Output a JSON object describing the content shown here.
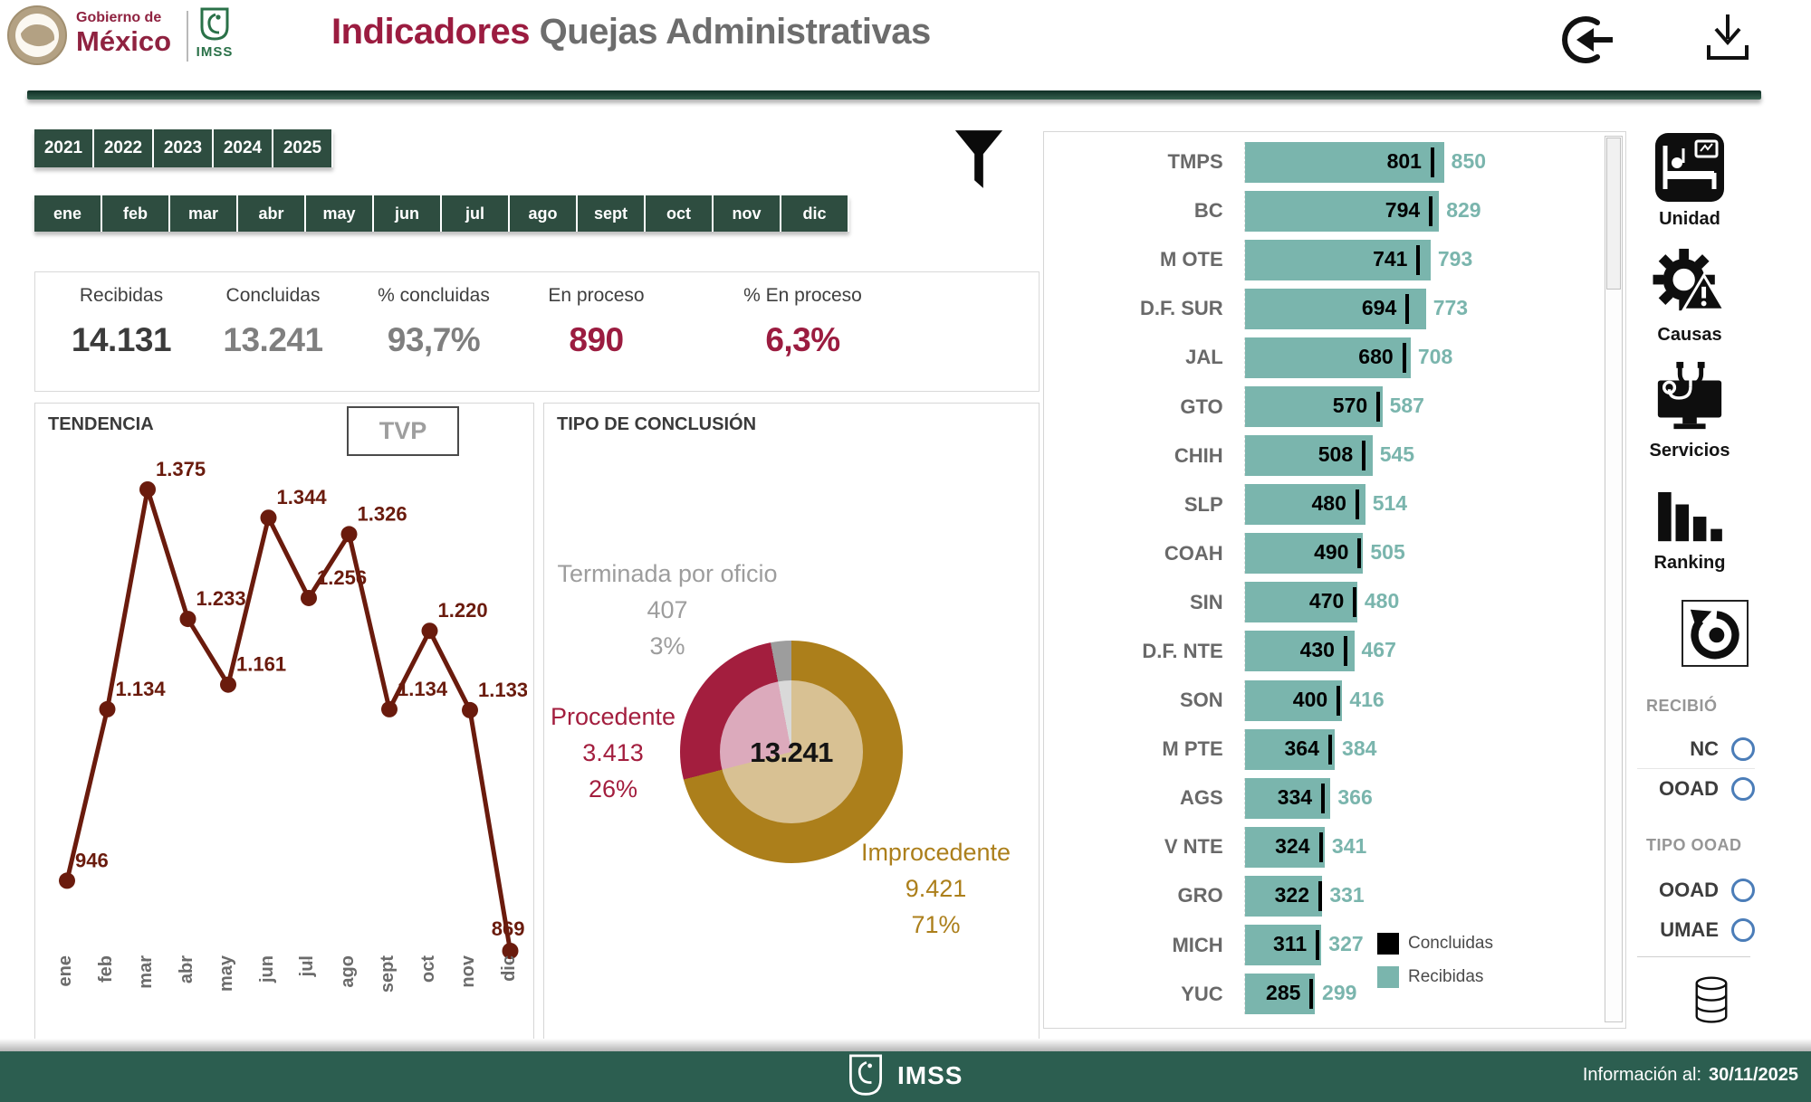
{
  "header": {
    "logo": {
      "gobierno_line1": "Gobierno de",
      "gobierno_line2": "México",
      "imss": "IMSS"
    },
    "title_primary": "Indicadores",
    "title_secondary": " Quejas Administrativas"
  },
  "filters": {
    "years": [
      "2021",
      "2022",
      "2023",
      "2024",
      "2025"
    ],
    "months": [
      "ene",
      "feb",
      "mar",
      "abr",
      "may",
      "jun",
      "jul",
      "ago",
      "sept",
      "oct",
      "nov",
      "dic"
    ]
  },
  "kpis": [
    {
      "label": "Recibidas",
      "value": "14.131",
      "color": "#3b3b3b"
    },
    {
      "label": "Concluidas",
      "value": "13.241",
      "color": "#7f7f7f"
    },
    {
      "label": "% concluidas",
      "value": "93,7%",
      "color": "#7f7f7f"
    },
    {
      "label": "En proceso",
      "value": "890",
      "color": "#9b1c40"
    },
    {
      "label": "% En proceso",
      "value": "6,3%",
      "color": "#9b1c40"
    }
  ],
  "panels": {
    "tendencia_title": "TENDENCIA",
    "tvp_label": "TVP",
    "conclusion_title": "TIPO DE CONCLUSIÓN"
  },
  "chart_data": [
    {
      "type": "line",
      "title": "TENDENCIA",
      "x": [
        "ene",
        "feb",
        "mar",
        "abr",
        "may",
        "jun",
        "jul",
        "ago",
        "sept",
        "oct",
        "nov",
        "dic"
      ],
      "values": [
        946,
        1134,
        1375,
        1233,
        1161,
        1344,
        1256,
        1326,
        1134,
        1220,
        1133,
        869
      ],
      "labels": [
        "946",
        "1.134",
        "1.375",
        "1.233",
        "1.161",
        "1.344",
        "1.256",
        "1.326",
        "1.134",
        "1.220",
        "1.133",
        "869"
      ],
      "color": "#6a1b0d",
      "ylim": [
        860,
        1405
      ],
      "grid": false,
      "legend_position": "none"
    },
    {
      "type": "pie",
      "title": "TIPO DE CONCLUSIÓN",
      "center_label": "13.241",
      "slices": [
        {
          "name": "Improcedente",
          "value": 9421,
          "pct": 71,
          "label_value": "9.421",
          "pct_label": "71%",
          "color": "#ac7f1b",
          "inner_color": "#d8c193"
        },
        {
          "name": "Procedente",
          "value": 3413,
          "pct": 26,
          "label_value": "3.413",
          "pct_label": "26%",
          "color": "#a31e3e",
          "inner_color": "#dcaabc"
        },
        {
          "name": "Terminada por oficio",
          "value": 407,
          "pct": 3,
          "label_value": "407",
          "pct_label": "3%",
          "color": "#9d9d9d",
          "inner_color": "#d9d9d9"
        }
      ]
    },
    {
      "type": "bar",
      "orientation": "horizontal",
      "categories": [
        "TMPS",
        "BC",
        "M OTE",
        "D.F. SUR",
        "JAL",
        "GTO",
        "CHIH",
        "SLP",
        "COAH",
        "SIN",
        "D.F. NTE",
        "SON",
        "M PTE",
        "AGS",
        "V NTE",
        "GRO",
        "MICH",
        "YUC"
      ],
      "series": [
        {
          "name": "Concluidas",
          "color": "#000000",
          "values": [
            801,
            794,
            741,
            694,
            680,
            570,
            508,
            480,
            490,
            470,
            430,
            400,
            364,
            334,
            324,
            322,
            311,
            285
          ]
        },
        {
          "name": "Recibidas",
          "color": "#7ab5ad",
          "values": [
            850,
            829,
            793,
            773,
            708,
            587,
            545,
            514,
            505,
            480,
            467,
            416,
            384,
            366,
            341,
            331,
            327,
            299
          ]
        }
      ],
      "xmax": 850,
      "legend_position": "bottom-right"
    }
  ],
  "sidebar": {
    "items": [
      {
        "label": "Unidad"
      },
      {
        "label": "Causas"
      },
      {
        "label": "Servicios"
      },
      {
        "label": "Ranking"
      }
    ],
    "recibio": {
      "label": "RECIBIÓ",
      "options": [
        "NC",
        "OOAD"
      ]
    },
    "tipo_ooad": {
      "label": "TIPO OOAD",
      "options": [
        "OOAD",
        "UMAE"
      ]
    }
  },
  "footer": {
    "brand": "IMSS",
    "info_label": "Información al:",
    "info_date": "30/11/2025"
  }
}
